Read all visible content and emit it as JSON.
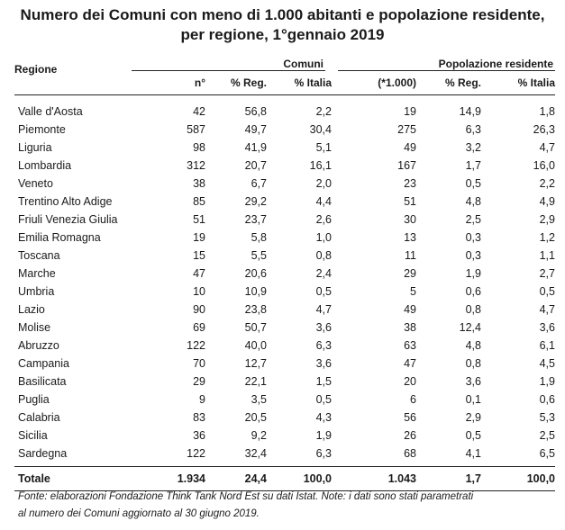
{
  "title_line1": "Numero dei Comuni con meno di 1.000 abitanti e popolazione residente,",
  "title_line2": "per regione, 1°gennaio 2019",
  "header": {
    "region": "Regione",
    "group_comuni": "Comuni",
    "group_pop": "Popolazione residente",
    "col_n": "n°",
    "col_reg1": "% Reg.",
    "col_ita1": "% Italia",
    "col_k": "(*1.000)",
    "col_reg2": "% Reg.",
    "col_ita2": "% Italia"
  },
  "rows": [
    {
      "region": "Valle d'Aosta",
      "n": "42",
      "reg1": "56,8",
      "ita1": "2,2",
      "k": "19",
      "reg2": "14,9",
      "ita2": "1,8"
    },
    {
      "region": "Piemonte",
      "n": "587",
      "reg1": "49,7",
      "ita1": "30,4",
      "k": "275",
      "reg2": "6,3",
      "ita2": "26,3"
    },
    {
      "region": "Liguria",
      "n": "98",
      "reg1": "41,9",
      "ita1": "5,1",
      "k": "49",
      "reg2": "3,2",
      "ita2": "4,7"
    },
    {
      "region": "Lombardia",
      "n": "312",
      "reg1": "20,7",
      "ita1": "16,1",
      "k": "167",
      "reg2": "1,7",
      "ita2": "16,0"
    },
    {
      "region": "Veneto",
      "n": "38",
      "reg1": "6,7",
      "ita1": "2,0",
      "k": "23",
      "reg2": "0,5",
      "ita2": "2,2"
    },
    {
      "region": "Trentino Alto Adige",
      "n": "85",
      "reg1": "29,2",
      "ita1": "4,4",
      "k": "51",
      "reg2": "4,8",
      "ita2": "4,9"
    },
    {
      "region": "Friuli Venezia Giulia",
      "n": "51",
      "reg1": "23,7",
      "ita1": "2,6",
      "k": "30",
      "reg2": "2,5",
      "ita2": "2,9"
    },
    {
      "region": "Emilia Romagna",
      "n": "19",
      "reg1": "5,8",
      "ita1": "1,0",
      "k": "13",
      "reg2": "0,3",
      "ita2": "1,2"
    },
    {
      "region": "Toscana",
      "n": "15",
      "reg1": "5,5",
      "ita1": "0,8",
      "k": "11",
      "reg2": "0,3",
      "ita2": "1,1"
    },
    {
      "region": "Marche",
      "n": "47",
      "reg1": "20,6",
      "ita1": "2,4",
      "k": "29",
      "reg2": "1,9",
      "ita2": "2,7"
    },
    {
      "region": "Umbria",
      "n": "10",
      "reg1": "10,9",
      "ita1": "0,5",
      "k": "5",
      "reg2": "0,6",
      "ita2": "0,5"
    },
    {
      "region": "Lazio",
      "n": "90",
      "reg1": "23,8",
      "ita1": "4,7",
      "k": "49",
      "reg2": "0,8",
      "ita2": "4,7"
    },
    {
      "region": "Molise",
      "n": "69",
      "reg1": "50,7",
      "ita1": "3,6",
      "k": "38",
      "reg2": "12,4",
      "ita2": "3,6"
    },
    {
      "region": "Abruzzo",
      "n": "122",
      "reg1": "40,0",
      "ita1": "6,3",
      "k": "63",
      "reg2": "4,8",
      "ita2": "6,1"
    },
    {
      "region": "Campania",
      "n": "70",
      "reg1": "12,7",
      "ita1": "3,6",
      "k": "47",
      "reg2": "0,8",
      "ita2": "4,5"
    },
    {
      "region": "Basilicata",
      "n": "29",
      "reg1": "22,1",
      "ita1": "1,5",
      "k": "20",
      "reg2": "3,6",
      "ita2": "1,9"
    },
    {
      "region": "Puglia",
      "n": "9",
      "reg1": "3,5",
      "ita1": "0,5",
      "k": "6",
      "reg2": "0,1",
      "ita2": "0,6"
    },
    {
      "region": "Calabria",
      "n": "83",
      "reg1": "20,5",
      "ita1": "4,3",
      "k": "56",
      "reg2": "2,9",
      "ita2": "5,3"
    },
    {
      "region": "Sicilia",
      "n": "36",
      "reg1": "9,2",
      "ita1": "1,9",
      "k": "26",
      "reg2": "0,5",
      "ita2": "2,5"
    },
    {
      "region": "Sardegna",
      "n": "122",
      "reg1": "32,4",
      "ita1": "6,3",
      "k": "68",
      "reg2": "4,1",
      "ita2": "6,5"
    }
  ],
  "total": {
    "region": "Totale",
    "n": "1.934",
    "reg1": "24,4",
    "ita1": "100,0",
    "k": "1.043",
    "reg2": "1,7",
    "ita2": "100,0"
  },
  "footnote_line1": "Fonte: elaborazioni Fondazione Think Tank Nord Est su dati  Istat. Note: i dati sono stati parametrati",
  "footnote_line2": "al numero dei Comuni aggiornato al 30 giugno 2019."
}
